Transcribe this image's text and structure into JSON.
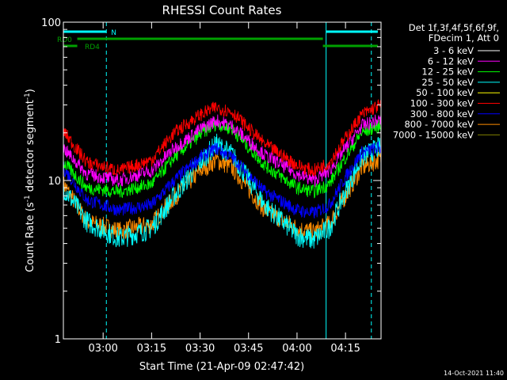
{
  "chart_data": {
    "type": "line",
    "title": "RHESSI Count Rates",
    "xlabel": "Start Time (21-Apr-09 02:47:42)",
    "ylabel": "Count Rate (s",
    "ylabel_sup": "-1",
    "ylabel_rest": " detector segment",
    "ylabel_sup2": "-1",
    "ylabel_end": ")",
    "yscale": "log",
    "ylim": [
      1,
      100
    ],
    "xlim": [
      "02:47:42",
      "04:26:00"
    ],
    "x_ticks": [
      "03:00",
      "03:15",
      "03:30",
      "03:45",
      "04:00",
      "04:15"
    ],
    "y_ticks": [
      "1",
      "10",
      "100"
    ],
    "legend_header": [
      "Det 1f,3f,4f,5f,6f,9f,",
      "FDecim 1, Att 0"
    ],
    "legend_position": "right",
    "series": [
      {
        "name": "3 - 6 keV",
        "color": "#ffffff",
        "values": []
      },
      {
        "name": "6 - 12 keV",
        "color": "#ff00ff",
        "values": []
      },
      {
        "name": "12 - 25 keV",
        "color": "#00ff00",
        "values": []
      },
      {
        "name": "25 - 50 keV",
        "color": "#00ffff",
        "values": []
      },
      {
        "name": "50 - 100 keV",
        "color": "#ffff00",
        "values": []
      },
      {
        "name": "100 - 300 keV",
        "color": "#ff0000",
        "values": []
      },
      {
        "name": "300 - 800 keV",
        "color": "#0000ff",
        "values": []
      },
      {
        "name": "800 - 7000 keV",
        "color": "#ff8c00",
        "values": []
      },
      {
        "name": "7000 - 15000 keV",
        "color": "#808000",
        "values": []
      }
    ],
    "plotted_series": [
      {
        "name": "100 - 300 keV",
        "color": "#ff0000",
        "x": [
          "02:47:42",
          "02:55",
          "03:05",
          "03:15",
          "03:22",
          "03:30",
          "03:35",
          "03:40",
          "03:50",
          "04:00",
          "04:05",
          "04:10",
          "04:15",
          "04:20",
          "04:25"
        ],
        "y": [
          20.5,
          13,
          11.5,
          13.5,
          20,
          26,
          29,
          27,
          17,
          12.5,
          11.5,
          13,
          18.5,
          26,
          29.5
        ]
      },
      {
        "name": "6 - 12 keV",
        "color": "#ff00ff",
        "x": [
          "02:47:42",
          "02:55",
          "03:05",
          "03:15",
          "03:22",
          "03:30",
          "03:35",
          "03:40",
          "03:50",
          "04:00",
          "04:05",
          "04:10",
          "04:15",
          "04:20",
          "04:25"
        ],
        "y": [
          16,
          11,
          10,
          11.5,
          16,
          21,
          24,
          22,
          14.5,
          11,
          10,
          11.5,
          16,
          22,
          24
        ]
      },
      {
        "name": "12 - 25 keV",
        "color": "#00ff00",
        "x": [
          "02:47:42",
          "02:55",
          "03:05",
          "03:15",
          "03:22",
          "03:30",
          "03:35",
          "03:40",
          "03:50",
          "04:00",
          "04:05",
          "04:10",
          "04:15",
          "04:20",
          "04:25"
        ],
        "y": [
          13,
          9,
          8.5,
          9.5,
          14,
          19.5,
          23,
          21,
          12.5,
          9,
          8.5,
          9.5,
          14,
          20,
          22
        ]
      },
      {
        "name": "25 - 50 keV",
        "color": "#00ffff",
        "x": [
          "02:47:42",
          "02:55",
          "03:05",
          "03:15",
          "03:22",
          "03:30",
          "03:35",
          "03:40",
          "03:50",
          "04:00",
          "04:05",
          "04:10",
          "04:15",
          "04:20",
          "04:25"
        ],
        "y": [
          9,
          5.5,
          4.3,
          5,
          8,
          13,
          17,
          14.5,
          7,
          4.5,
          4.2,
          5,
          8.5,
          14,
          16
        ]
      },
      {
        "name": "300 - 800 keV",
        "color": "#0000ff",
        "x": [
          "02:47:42",
          "02:55",
          "03:05",
          "03:15",
          "03:22",
          "03:30",
          "03:35",
          "03:40",
          "03:50",
          "04:00",
          "04:05",
          "04:10",
          "04:15",
          "04:20",
          "04:25"
        ],
        "y": [
          12,
          7.5,
          6.5,
          7,
          10,
          14,
          16,
          14,
          8.5,
          6.5,
          6.2,
          7,
          10.5,
          15,
          16
        ]
      },
      {
        "name": "800 - 7000 keV",
        "color": "#ff8c00",
        "x": [
          "02:47:42",
          "02:55",
          "03:05",
          "03:15",
          "03:22",
          "03:30",
          "03:35",
          "03:40",
          "03:50",
          "04:00",
          "04:05",
          "04:10",
          "04:15",
          "04:20",
          "04:25"
        ],
        "y": [
          9.5,
          5.5,
          4.8,
          5.3,
          7.8,
          11.5,
          13.5,
          12,
          6.5,
          5,
          4.7,
          5.3,
          8,
          12,
          13.5
        ]
      }
    ],
    "attenuator_bars": [
      {
        "label": "N",
        "color": "#00ffff",
        "segments": [
          [
            "02:47:42",
            "03:01"
          ],
          [
            "04:09",
            "04:25"
          ]
        ]
      },
      {
        "label": "RD0",
        "color": "#00a000",
        "segments": [
          [
            "02:52",
            "04:08"
          ]
        ]
      },
      {
        "label": "RD4",
        "color": "#00a000",
        "segments": [
          [
            "02:47:42",
            "02:52"
          ],
          [
            "04:08",
            "04:25"
          ]
        ]
      }
    ],
    "vertical_markers": [
      {
        "time": "02:47:42",
        "color": "#00ffff",
        "style": "solid"
      },
      {
        "time": "03:01",
        "color": "#00ffff",
        "style": "dashed"
      },
      {
        "time": "04:09",
        "color": "#00ffff",
        "style": "solid"
      },
      {
        "time": "04:23",
        "color": "#00ffff",
        "style": "dashed"
      }
    ]
  },
  "footer": {
    "timestamp": "14-Oct-2021 11:40"
  }
}
